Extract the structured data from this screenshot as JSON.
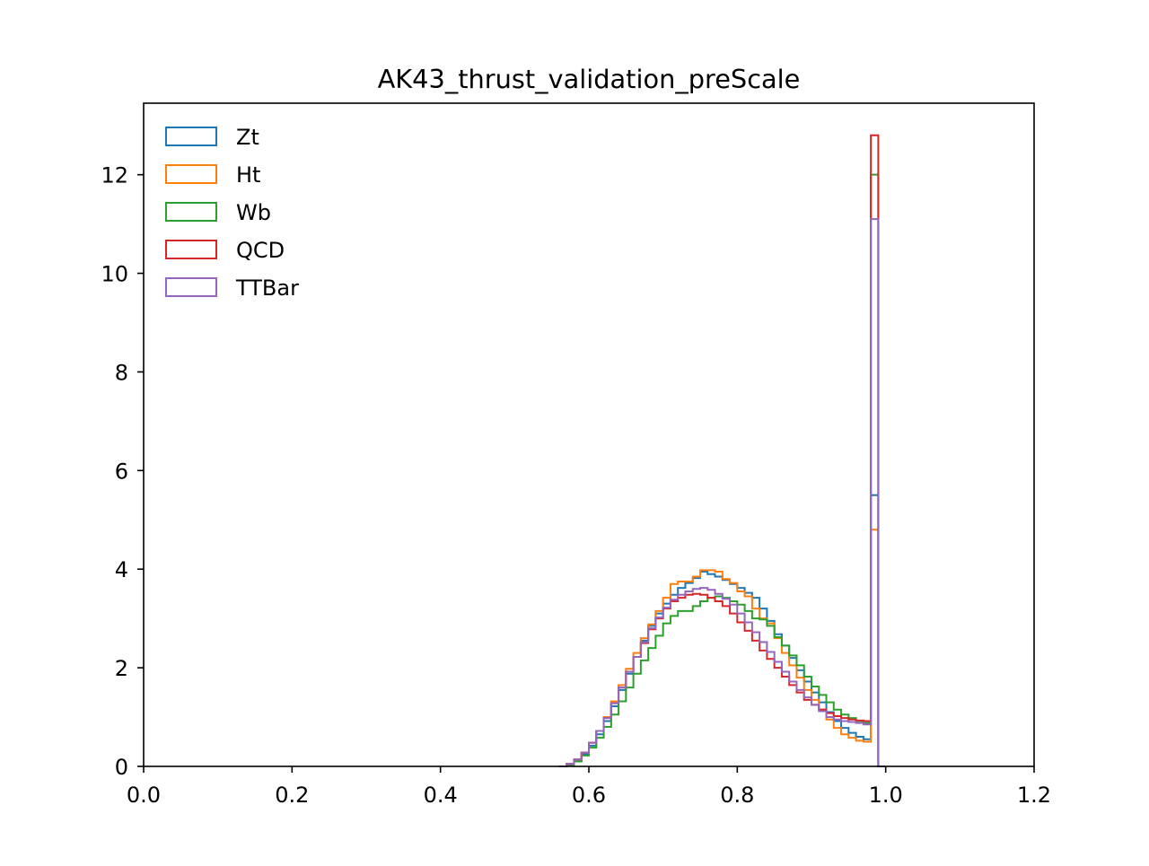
{
  "chart_data": {
    "type": "histogram-step",
    "title": "AK43_thrust_validation_preScale",
    "xlabel": "",
    "ylabel": "",
    "xlim": [
      0.0,
      1.2
    ],
    "ylim": [
      0,
      13.45
    ],
    "xticks": [
      0.0,
      0.2,
      0.4,
      0.6,
      0.8,
      1.0,
      1.2
    ],
    "xtick_labels": [
      "0.0",
      "0.2",
      "0.4",
      "0.6",
      "0.8",
      "1.0",
      "1.2"
    ],
    "yticks": [
      0,
      2,
      4,
      6,
      8,
      10,
      12
    ],
    "ytick_labels": [
      "0",
      "2",
      "4",
      "6",
      "8",
      "10",
      "12"
    ],
    "grid": false,
    "legend_position": "upper-left",
    "bins": {
      "start": 0.56,
      "width": 0.01,
      "count": 44
    },
    "series": [
      {
        "name": "Zt",
        "color": "#1f77b4",
        "values": [
          0.0,
          0.05,
          0.12,
          0.25,
          0.42,
          0.65,
          0.92,
          1.22,
          1.55,
          1.88,
          2.22,
          2.55,
          2.85,
          3.1,
          3.3,
          3.48,
          3.62,
          3.72,
          3.82,
          3.95,
          3.9,
          3.85,
          3.78,
          3.7,
          3.62,
          3.52,
          3.42,
          3.2,
          2.95,
          2.68,
          2.45,
          2.2,
          1.95,
          1.72,
          1.5,
          1.3,
          1.1,
          0.92,
          0.78,
          0.68,
          0.6,
          0.55,
          5.5,
          0.0
        ]
      },
      {
        "name": "Ht",
        "color": "#ff7f0e",
        "values": [
          0.0,
          0.05,
          0.14,
          0.28,
          0.48,
          0.72,
          1.0,
          1.32,
          1.65,
          1.98,
          2.3,
          2.6,
          2.88,
          3.15,
          3.42,
          3.7,
          3.75,
          3.75,
          3.85,
          3.98,
          3.98,
          3.95,
          3.8,
          3.72,
          3.55,
          3.45,
          3.2,
          3.0,
          2.9,
          2.6,
          2.3,
          2.05,
          1.8,
          1.55,
          1.35,
          1.15,
          0.95,
          0.78,
          0.65,
          0.58,
          0.52,
          0.5,
          4.8,
          0.0
        ]
      },
      {
        "name": "Wb",
        "color": "#2ca02c",
        "values": [
          0.0,
          0.03,
          0.1,
          0.22,
          0.38,
          0.58,
          0.8,
          1.05,
          1.32,
          1.6,
          1.88,
          2.15,
          2.4,
          2.65,
          2.9,
          3.05,
          3.15,
          3.15,
          3.25,
          3.35,
          3.42,
          3.45,
          3.42,
          3.35,
          3.28,
          3.15,
          3.0,
          2.98,
          2.85,
          2.62,
          2.45,
          2.25,
          2.05,
          1.82,
          1.62,
          1.45,
          1.3,
          1.15,
          1.05,
          0.98,
          0.92,
          0.88,
          12.0,
          0.0
        ]
      },
      {
        "name": "QCD",
        "color": "#d62728",
        "values": [
          0.0,
          0.05,
          0.14,
          0.28,
          0.48,
          0.72,
          0.98,
          1.28,
          1.6,
          1.92,
          2.22,
          2.5,
          2.78,
          3.0,
          3.2,
          3.35,
          3.42,
          3.48,
          3.5,
          3.48,
          3.42,
          3.35,
          3.25,
          3.1,
          2.92,
          2.75,
          2.55,
          2.35,
          2.18,
          2.0,
          1.82,
          1.65,
          1.5,
          1.35,
          1.25,
          1.15,
          1.08,
          1.02,
          0.98,
          0.95,
          0.93,
          0.92,
          12.8,
          0.0
        ]
      },
      {
        "name": "TTBar",
        "color": "#9467bd",
        "values": [
          0.0,
          0.05,
          0.14,
          0.28,
          0.48,
          0.72,
          0.98,
          1.28,
          1.6,
          1.92,
          2.22,
          2.52,
          2.8,
          3.02,
          3.22,
          3.38,
          3.48,
          3.55,
          3.6,
          3.62,
          3.58,
          3.5,
          3.4,
          3.28,
          3.1,
          2.92,
          2.72,
          2.52,
          2.32,
          2.12,
          1.92,
          1.72,
          1.55,
          1.4,
          1.25,
          1.12,
          1.0,
          0.95,
          0.92,
          0.9,
          0.88,
          0.85,
          11.1,
          0.0
        ]
      }
    ]
  }
}
